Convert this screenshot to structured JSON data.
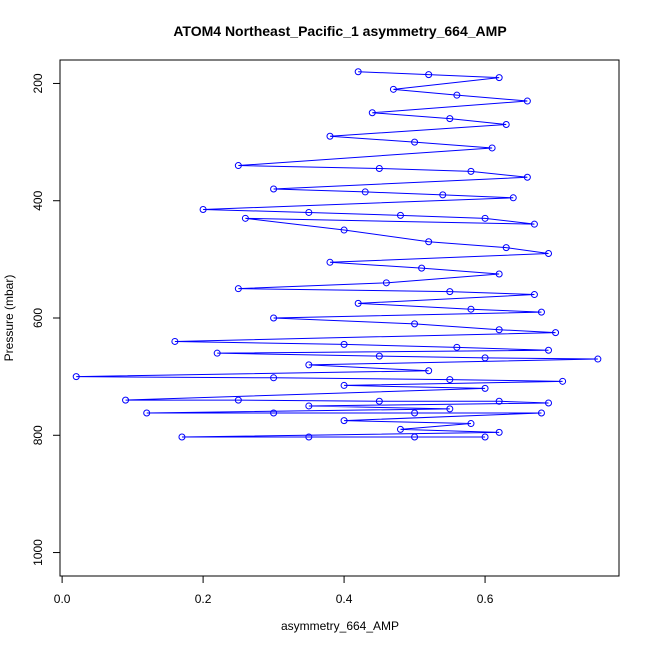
{
  "chart_data": {
    "type": "scatter",
    "title": "ATOM4 Northeast_Pacific_1 asymmetry_664_AMP",
    "xlabel": "asymmetry_664_AMP",
    "ylabel": "Pressure (mbar)",
    "xlim": [
      -0.003,
      0.79
    ],
    "ylim": [
      1040,
      160
    ],
    "y_reversed": true,
    "x_ticks": [
      {
        "value": 0.0,
        "label": "0.0"
      },
      {
        "value": 0.2,
        "label": "0.2"
      },
      {
        "value": 0.4,
        "label": "0.4"
      },
      {
        "value": 0.6,
        "label": "0.6"
      }
    ],
    "y_ticks": [
      {
        "value": 200,
        "label": "200"
      },
      {
        "value": 400,
        "label": "400"
      },
      {
        "value": 600,
        "label": "600"
      },
      {
        "value": 800,
        "label": "800"
      },
      {
        "value": 1000,
        "label": "1000"
      }
    ],
    "grid": false,
    "series_color": "#0000ff",
    "markers": "open-circle",
    "connected_by_lines": true,
    "series": [
      {
        "points": [
          [
            0.42,
            180
          ],
          [
            0.52,
            185
          ],
          [
            0.62,
            190
          ],
          [
            0.47,
            210
          ],
          [
            0.56,
            220
          ],
          [
            0.66,
            230
          ],
          [
            0.44,
            250
          ],
          [
            0.55,
            260
          ],
          [
            0.63,
            270
          ],
          [
            0.38,
            290
          ],
          [
            0.5,
            300
          ],
          [
            0.61,
            310
          ],
          [
            0.25,
            340
          ],
          [
            0.45,
            345
          ],
          [
            0.58,
            350
          ],
          [
            0.66,
            360
          ],
          [
            0.3,
            380
          ],
          [
            0.43,
            385
          ],
          [
            0.54,
            390
          ],
          [
            0.64,
            395
          ],
          [
            0.2,
            415
          ],
          [
            0.35,
            420
          ],
          [
            0.48,
            425
          ],
          [
            0.6,
            430
          ],
          [
            0.67,
            440
          ],
          [
            0.26,
            430
          ],
          [
            0.4,
            450
          ],
          [
            0.52,
            470
          ],
          [
            0.63,
            480
          ],
          [
            0.69,
            490
          ],
          [
            0.38,
            505
          ],
          [
            0.51,
            515
          ],
          [
            0.62,
            525
          ],
          [
            0.46,
            540
          ],
          [
            0.25,
            550
          ],
          [
            0.55,
            555
          ],
          [
            0.67,
            560
          ],
          [
            0.42,
            575
          ],
          [
            0.58,
            585
          ],
          [
            0.68,
            590
          ],
          [
            0.3,
            600
          ],
          [
            0.5,
            610
          ],
          [
            0.62,
            620
          ],
          [
            0.7,
            625
          ],
          [
            0.16,
            640
          ],
          [
            0.4,
            645
          ],
          [
            0.56,
            650
          ],
          [
            0.69,
            655
          ],
          [
            0.22,
            660
          ],
          [
            0.45,
            665
          ],
          [
            0.6,
            668
          ],
          [
            0.76,
            670
          ],
          [
            0.35,
            680
          ],
          [
            0.52,
            690
          ],
          [
            0.02,
            700
          ],
          [
            0.3,
            702
          ],
          [
            0.55,
            705
          ],
          [
            0.71,
            708
          ],
          [
            0.4,
            715
          ],
          [
            0.6,
            720
          ],
          [
            0.09,
            740
          ],
          [
            0.25,
            740
          ],
          [
            0.45,
            742
          ],
          [
            0.62,
            742
          ],
          [
            0.69,
            745
          ],
          [
            0.35,
            750
          ],
          [
            0.55,
            755
          ],
          [
            0.12,
            762
          ],
          [
            0.3,
            762
          ],
          [
            0.5,
            762
          ],
          [
            0.68,
            762
          ],
          [
            0.4,
            775
          ],
          [
            0.58,
            780
          ],
          [
            0.48,
            790
          ],
          [
            0.62,
            795
          ],
          [
            0.17,
            803
          ],
          [
            0.35,
            803
          ],
          [
            0.5,
            803
          ],
          [
            0.6,
            803
          ]
        ]
      }
    ]
  }
}
